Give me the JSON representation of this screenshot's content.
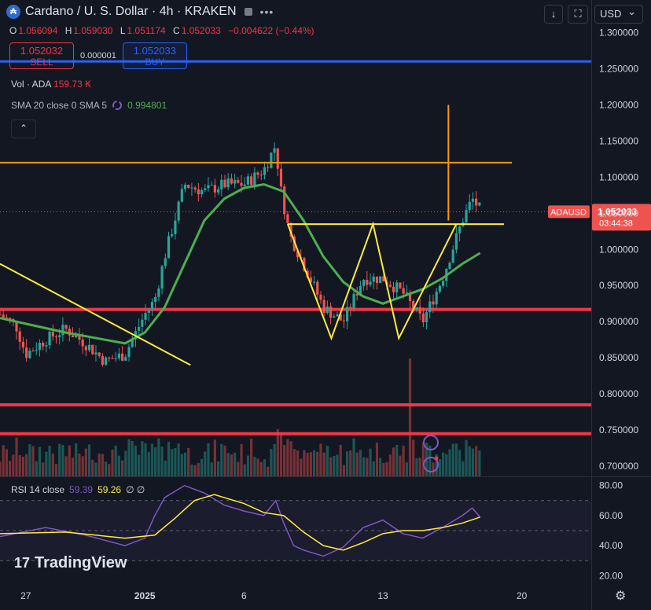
{
  "header": {
    "title": "Cardano / U. S. Dollar · 4h · KRAKEN",
    "coin_glyph": "₳",
    "more_glyph": "•••",
    "ohlc": {
      "o_label": "O",
      "o": "1.056094",
      "h_label": "H",
      "h": "1.059030",
      "l_label": "L",
      "l": "1.051174",
      "c_label": "C",
      "c": "1.052033",
      "change": "−0.004622 (−0.44%)"
    }
  },
  "trade": {
    "sell_price": "1.052032",
    "sell_label": "SELL",
    "spread": "0.000001",
    "buy_price": "1.052033",
    "buy_label": "BUY"
  },
  "toolbar": {
    "download_glyph": "↓",
    "fullscreen_glyph": "⛶",
    "currency": "USD",
    "currency_caret": "⌄"
  },
  "indicators": {
    "vol_label": "Vol · ADA",
    "vol_value": "159.73 K",
    "sma_label": "SMA 20 close 0 SMA 5",
    "sma_value": "0.994801",
    "rsi_label": "RSI 14 close",
    "rsi_value": "59.39",
    "rsi_ma": "59.26",
    "rsi_extra": "∅ ∅"
  },
  "collapse_glyph": "⌃",
  "price_tag": {
    "symbol": "ADAUSD",
    "price": "1.052033",
    "countdown": "03:44:38"
  },
  "logo": {
    "mark": "17",
    "text": "TradingView"
  },
  "colors": {
    "bg": "#131722",
    "up": "#26a69a",
    "down": "#ef5350",
    "sma": "#4caf50",
    "yellow": "#ffeb3b",
    "orange": "#ff9800",
    "red_line": "#f23645",
    "blue_line": "#2962ff",
    "rsi": "#7e57c2"
  },
  "chart_data": {
    "type": "candlestick",
    "price_axis": {
      "ticks": [
        1.3,
        1.25,
        1.2,
        1.15,
        1.1,
        1.05,
        1.0,
        0.95,
        0.9,
        0.85,
        0.8,
        0.75,
        0.7
      ],
      "tick_labels": [
        "1.300000",
        "1.250000",
        "1.200000",
        "1.150000",
        "1.100000",
        "1.050000",
        "1.000000",
        "0.950000",
        "0.900000",
        "0.850000",
        "0.800000",
        "0.750000",
        "0.700000"
      ],
      "range": [
        0.686,
        1.345
      ]
    },
    "rsi_axis": {
      "ticks": [
        80,
        60,
        40,
        20
      ],
      "tick_labels": [
        "80.00",
        "60.00",
        "40.00",
        "20.00"
      ],
      "range": [
        16,
        84
      ],
      "bands": [
        70,
        50,
        30
      ]
    },
    "x_ticks": [
      {
        "label": "27",
        "day": -6
      },
      {
        "label": "2025",
        "day": 0
      },
      {
        "label": "6",
        "day": 5
      },
      {
        "label": "13",
        "day": 12
      },
      {
        "label": "20",
        "day": 19
      }
    ],
    "x_range_days": [
      -7.3,
      22.5
    ],
    "price_path": [
      [
        -7.3,
        0.91
      ],
      [
        -6.5,
        0.895
      ],
      [
        -6,
        0.855
      ],
      [
        -5,
        0.875
      ],
      [
        -4,
        0.89
      ],
      [
        -3,
        0.87
      ],
      [
        -2,
        0.845
      ],
      [
        -1,
        0.855
      ],
      [
        0,
        0.91
      ],
      [
        0.5,
        0.93
      ],
      [
        1,
        0.99
      ],
      [
        1.5,
        1.04
      ],
      [
        2,
        1.09
      ],
      [
        3,
        1.08
      ],
      [
        4,
        1.09
      ],
      [
        5,
        1.09
      ],
      [
        6,
        1.11
      ],
      [
        6.6,
        1.145
      ],
      [
        6.8,
        1.09
      ],
      [
        7.3,
        1.02
      ],
      [
        8,
        0.98
      ],
      [
        9,
        0.92
      ],
      [
        10,
        0.9
      ],
      [
        11,
        0.96
      ],
      [
        12,
        0.96
      ],
      [
        13,
        0.94
      ],
      [
        14,
        0.9
      ],
      [
        15,
        0.96
      ],
      [
        16,
        1.04
      ],
      [
        16.5,
        1.07
      ],
      [
        16.9,
        1.055
      ]
    ],
    "sma_path": [
      [
        -7.3,
        0.905
      ],
      [
        -4,
        0.885
      ],
      [
        -1,
        0.87
      ],
      [
        0,
        0.885
      ],
      [
        1,
        0.92
      ],
      [
        2,
        0.98
      ],
      [
        3,
        1.04
      ],
      [
        4,
        1.07
      ],
      [
        5,
        1.085
      ],
      [
        6,
        1.09
      ],
      [
        7,
        1.08
      ],
      [
        8,
        1.04
      ],
      [
        9,
        0.99
      ],
      [
        10,
        0.955
      ],
      [
        11,
        0.935
      ],
      [
        12,
        0.925
      ],
      [
        13,
        0.935
      ],
      [
        14,
        0.945
      ],
      [
        15,
        0.96
      ],
      [
        16,
        0.98
      ],
      [
        16.9,
        0.995
      ]
    ],
    "volume_bars": "derived from price path volatility; shown at bottom pane",
    "rsi_path": [
      [
        -7.3,
        46
      ],
      [
        -5,
        52
      ],
      [
        -3,
        47
      ],
      [
        -1,
        40
      ],
      [
        0,
        45
      ],
      [
        0.5,
        60
      ],
      [
        1,
        72
      ],
      [
        2,
        80
      ],
      [
        3,
        75
      ],
      [
        4,
        67
      ],
      [
        5,
        63
      ],
      [
        6,
        60
      ],
      [
        6.6,
        70
      ],
      [
        7,
        55
      ],
      [
        7.5,
        40
      ],
      [
        8,
        37
      ],
      [
        9,
        33
      ],
      [
        10,
        39
      ],
      [
        11,
        52
      ],
      [
        12,
        57
      ],
      [
        13,
        48
      ],
      [
        14,
        45
      ],
      [
        15,
        52
      ],
      [
        16,
        60
      ],
      [
        16.5,
        65
      ],
      [
        16.9,
        59
      ]
    ],
    "rsi_ma_path": [
      [
        -7.3,
        48
      ],
      [
        -4,
        49
      ],
      [
        -1,
        45
      ],
      [
        0.5,
        47
      ],
      [
        1.5,
        58
      ],
      [
        2.5,
        70
      ],
      [
        3.5,
        74
      ],
      [
        5,
        68
      ],
      [
        6,
        62
      ],
      [
        7,
        60
      ],
      [
        8,
        49
      ],
      [
        9,
        40
      ],
      [
        10,
        37
      ],
      [
        11,
        42
      ],
      [
        12,
        48
      ],
      [
        13,
        50
      ],
      [
        14,
        50
      ],
      [
        15,
        52
      ],
      [
        16,
        55
      ],
      [
        16.9,
        59
      ]
    ],
    "horizontal_lines": [
      {
        "price": 1.26,
        "color": "blue"
      },
      {
        "price": 0.917,
        "color": "red"
      },
      {
        "price": 0.785,
        "color": "red"
      },
      {
        "price": 0.745,
        "color": "red"
      }
    ],
    "orange_levels": [
      {
        "from_day": -7.3,
        "to_day": 18.5,
        "price": 1.12
      }
    ],
    "orange_vertical": {
      "day": 15.3,
      "from": 1.2,
      "to": 1.04
    },
    "yellow_drawings": [
      {
        "points": [
          [
            -7.3,
            0.98
          ],
          [
            2.3,
            0.84
          ]
        ]
      },
      {
        "points": [
          [
            7.2,
            1.035
          ],
          [
            9.4,
            0.877
          ],
          [
            11.5,
            1.035
          ],
          [
            12.8,
            0.877
          ],
          [
            15.7,
            1.035
          ]
        ]
      },
      {
        "points": [
          [
            7.2,
            1.035
          ],
          [
            18.1,
            1.035
          ]
        ]
      }
    ],
    "current_price": 1.052033
  }
}
